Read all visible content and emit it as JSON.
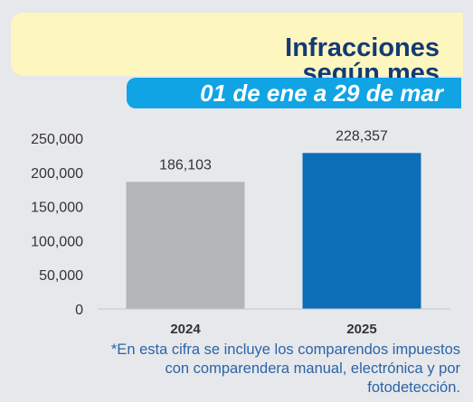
{
  "header": {
    "title_line1": "Infracciones",
    "title_line2": "según mes",
    "date_range": "01 de ene a 29 de mar"
  },
  "colors": {
    "bar_2024": "#b3b5b6",
    "bar_2025": "#0b6eb7",
    "title_text": "#133a74",
    "date_bar": "#10a4e4"
  },
  "chart_data": {
    "type": "bar",
    "categories": [
      "2024",
      "2025"
    ],
    "values": [
      186103,
      228357
    ],
    "value_labels": [
      "186,103",
      "228,357"
    ],
    "ylim": [
      0,
      250000
    ],
    "yticks": [
      0,
      50000,
      100000,
      150000,
      200000,
      250000
    ],
    "ytick_labels": [
      "0",
      "50,000",
      "100,000",
      "150,000",
      "200,000",
      "250,000"
    ],
    "grid": false
  },
  "footnote": {
    "line1": "*En esta cifra se incluye los comparendos impuestos",
    "line2": "con comparendera manual, electrónica y por",
    "line3": "fotodetección."
  }
}
